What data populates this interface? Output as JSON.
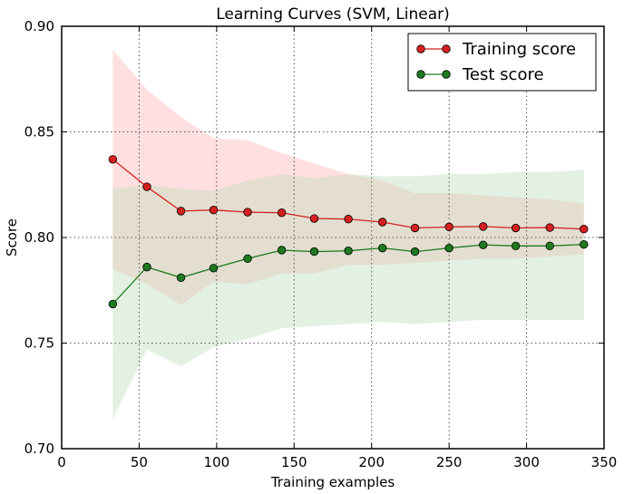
{
  "chart_data": {
    "type": "line",
    "title": "Learning Curves (SVM, Linear)",
    "xlabel": "Training examples",
    "ylabel": "Score",
    "xlim": [
      0,
      350
    ],
    "ylim": [
      0.7,
      0.9
    ],
    "x_ticks": [
      "0",
      "50",
      "100",
      "150",
      "200",
      "250",
      "300",
      "350"
    ],
    "y_ticks": [
      "0.70",
      "0.75",
      "0.80",
      "0.85",
      "0.90"
    ],
    "grid": true,
    "legend_position": "top-right",
    "x": [
      33,
      55,
      77,
      98,
      120,
      142,
      163,
      185,
      207,
      228,
      250,
      272,
      293,
      315,
      337
    ],
    "series": [
      {
        "name": "Training score",
        "color": "#d62020",
        "band_color": "#ffb0b0",
        "values": [
          0.837,
          0.824,
          0.8125,
          0.813,
          0.812,
          0.8117,
          0.809,
          0.8087,
          0.8073,
          0.8045,
          0.805,
          0.8052,
          0.8045,
          0.8047,
          0.804
        ],
        "upper": [
          0.889,
          0.87,
          0.857,
          0.847,
          0.846,
          0.84,
          0.835,
          0.83,
          0.827,
          0.821,
          0.821,
          0.82,
          0.819,
          0.818,
          0.816
        ],
        "lower": [
          0.785,
          0.778,
          0.768,
          0.779,
          0.778,
          0.783,
          0.783,
          0.787,
          0.787,
          0.788,
          0.789,
          0.79,
          0.79,
          0.791,
          0.792
        ]
      },
      {
        "name": "Test score",
        "color": "#1e7a1e",
        "band_color": "#b8dcb8",
        "values": [
          0.7685,
          0.786,
          0.781,
          0.7855,
          0.79,
          0.794,
          0.7933,
          0.7937,
          0.795,
          0.7933,
          0.795,
          0.7965,
          0.796,
          0.796,
          0.7967
        ],
        "upper": [
          0.823,
          0.825,
          0.823,
          0.822,
          0.827,
          0.83,
          0.828,
          0.83,
          0.829,
          0.829,
          0.83,
          0.83,
          0.831,
          0.831,
          0.832
        ],
        "lower": [
          0.714,
          0.747,
          0.739,
          0.748,
          0.752,
          0.757,
          0.758,
          0.759,
          0.76,
          0.759,
          0.76,
          0.761,
          0.761,
          0.761,
          0.761
        ]
      }
    ]
  }
}
